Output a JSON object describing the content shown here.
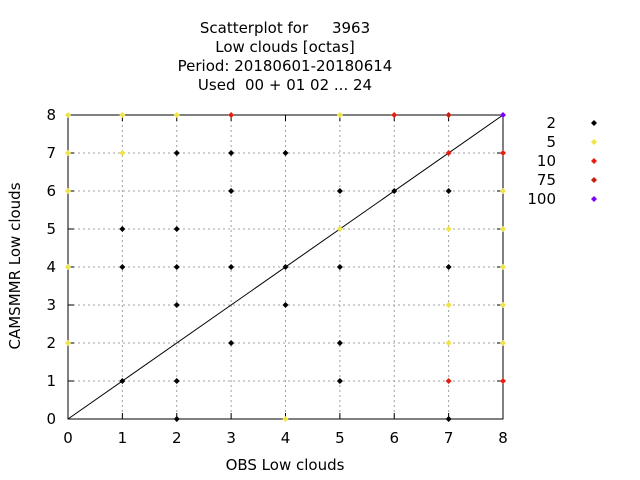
{
  "chart_data": {
    "type": "scatter",
    "title_lines": [
      "Scatterplot for     3963",
      "Low clouds [octas]",
      "Period: 20180601-20180614",
      "Used  00 + 01 02 ... 24"
    ],
    "xlabel": "OBS Low clouds",
    "ylabel": "CAMSMMR Low clouds",
    "xlim": [
      0,
      8
    ],
    "ylim": [
      0,
      8
    ],
    "xticks": [
      "0",
      "1",
      "2",
      "3",
      "4",
      "5",
      "6",
      "7",
      "8"
    ],
    "yticks": [
      "0",
      "1",
      "2",
      "3",
      "4",
      "5",
      "6",
      "7",
      "8"
    ],
    "grid": true,
    "diagonal_line": true,
    "legend_position": "right",
    "series": [
      {
        "name": "2",
        "color": "#000000",
        "points": [
          [
            1,
            1
          ],
          [
            1,
            4
          ],
          [
            1,
            5
          ],
          [
            2,
            0
          ],
          [
            2,
            1
          ],
          [
            2,
            3
          ],
          [
            2,
            4
          ],
          [
            2,
            5
          ],
          [
            2,
            7
          ],
          [
            3,
            2
          ],
          [
            3,
            4
          ],
          [
            3,
            6
          ],
          [
            3,
            7
          ],
          [
            4,
            3
          ],
          [
            4,
            4
          ],
          [
            4,
            7
          ],
          [
            5,
            1
          ],
          [
            5,
            2
          ],
          [
            5,
            4
          ],
          [
            5,
            6
          ],
          [
            6,
            6
          ],
          [
            7,
            0
          ],
          [
            7,
            4
          ],
          [
            7,
            6
          ]
        ]
      },
      {
        "name": "5",
        "color": "#f0e442",
        "points": [
          [
            0,
            2
          ],
          [
            0,
            4
          ],
          [
            0,
            6
          ],
          [
            0,
            7
          ],
          [
            0,
            8
          ],
          [
            1,
            7
          ],
          [
            1,
            8
          ],
          [
            2,
            8
          ],
          [
            4,
            0
          ],
          [
            5,
            5
          ],
          [
            5,
            8
          ],
          [
            7,
            2
          ],
          [
            7,
            3
          ],
          [
            7,
            5
          ],
          [
            8,
            2
          ],
          [
            8,
            3
          ],
          [
            8,
            4
          ],
          [
            8,
            5
          ],
          [
            8,
            6
          ]
        ]
      },
      {
        "name": "10",
        "color": "#e51e10",
        "points": [
          [
            3,
            8
          ],
          [
            6,
            8
          ],
          [
            7,
            1
          ],
          [
            7,
            7
          ],
          [
            8,
            1
          ],
          [
            8,
            7
          ]
        ]
      },
      {
        "name": "75",
        "color": "#c8200e",
        "points": [
          [
            7,
            8
          ]
        ]
      },
      {
        "name": "100",
        "color": "#7f00ff",
        "points": [
          [
            8,
            8
          ]
        ]
      }
    ]
  }
}
